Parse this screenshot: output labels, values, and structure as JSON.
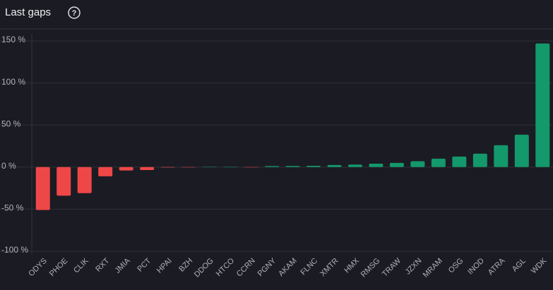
{
  "chart_data": {
    "type": "bar",
    "title": "Last gaps",
    "categories": [
      "ODYS",
      "PHOE",
      "CLIK",
      "RXT",
      "JMIA",
      "PCT",
      "HPAI",
      "BZH",
      "DDOG",
      "HTCO",
      "CCRN",
      "PGNY",
      "AKAM",
      "FLNC",
      "XMTR",
      "HMX",
      "RMSG",
      "TRAW",
      "JZXN",
      "MRAM",
      "OSG",
      "INOD",
      "ATRA",
      "AGL",
      "WDK"
    ],
    "values": [
      -51,
      -34,
      -31,
      -11,
      -4,
      -3.5,
      -0.5,
      -0.2,
      0.3,
      0.1,
      -0.1,
      1.2,
      1.3,
      1.5,
      2.5,
      3,
      4,
      5,
      7,
      10,
      12.5,
      16,
      26,
      38.5,
      147
    ],
    "positive_color": "#13996b",
    "negative_color": "#ee4747",
    "ylim": [
      -100,
      150
    ],
    "yticks": [
      {
        "value": -100,
        "label": "-100 %"
      },
      {
        "value": -50,
        "label": "-50 %"
      },
      {
        "value": 0,
        "label": "0 %"
      },
      {
        "value": 50,
        "label": "50 %"
      },
      {
        "value": 100,
        "label": "100 %"
      },
      {
        "value": 150,
        "label": "150 %"
      }
    ],
    "grid": true
  }
}
